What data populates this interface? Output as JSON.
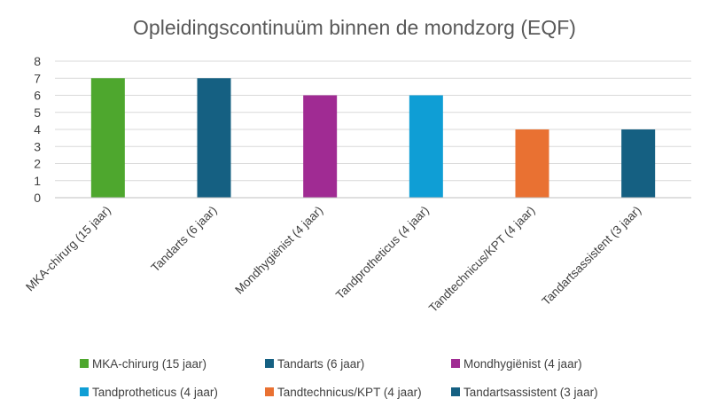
{
  "chart_data": {
    "type": "bar",
    "title": "Opleidingscontinuüm binnen de mondzorg (EQF)",
    "xlabel": "",
    "ylabel": "",
    "ylim": [
      0,
      8
    ],
    "yticks": [
      "0",
      "1",
      "2",
      "3",
      "4",
      "5",
      "6",
      "7",
      "8"
    ],
    "grid": true,
    "legend_position": "bottom",
    "categories": [
      "MKA-chirurg (15 jaar)",
      "Tandarts (6 jaar)",
      "Mondhygiënist (4 jaar)",
      "Tandprotheticus (4 jaar)",
      "Tandtechnicus/KPT (4 jaar)",
      "Tandartsassistent (3 jaar)"
    ],
    "values": [
      7,
      7,
      6,
      6,
      4,
      4
    ],
    "colors": [
      "#4ea72e",
      "#156082",
      "#a02b93",
      "#0f9ed5",
      "#e97132",
      "#156082"
    ],
    "legend": [
      "MKA-chirurg (15 jaar)",
      "Tandarts (6 jaar)",
      "Mondhygiënist (4 jaar)",
      "Tandprotheticus (4 jaar)",
      "Tandtechnicus/KPT (4 jaar)",
      "Tandartsassistent (3 jaar)"
    ]
  }
}
